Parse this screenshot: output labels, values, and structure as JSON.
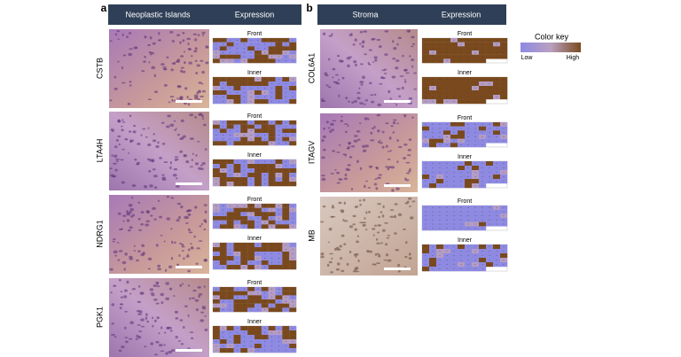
{
  "panels": [
    {
      "label": "a",
      "header": [
        "Neoplastic Islands",
        "Expression"
      ],
      "rows": [
        {
          "gene": "CSTB",
          "front": "Front",
          "inner": "Inner"
        },
        {
          "gene": "LTA4H",
          "front": "Front",
          "inner": "Inner"
        },
        {
          "gene": "NDRG1",
          "front": "Front",
          "inner": "Inner"
        },
        {
          "gene": "PGK1",
          "front": "Front",
          "inner": "Inner"
        }
      ]
    },
    {
      "label": "b",
      "header": [
        "Stroma",
        "Expression"
      ],
      "rows": [
        {
          "gene": "COL6A1",
          "front": "Front",
          "inner": "Inner"
        },
        {
          "gene": "ITAGV",
          "front": "Front",
          "inner": "Inner"
        },
        {
          "gene": "MB",
          "front": "Front",
          "inner": "Inner"
        }
      ]
    }
  ],
  "color_key": {
    "title": "Color key",
    "low": "Low",
    "high": "High"
  }
}
